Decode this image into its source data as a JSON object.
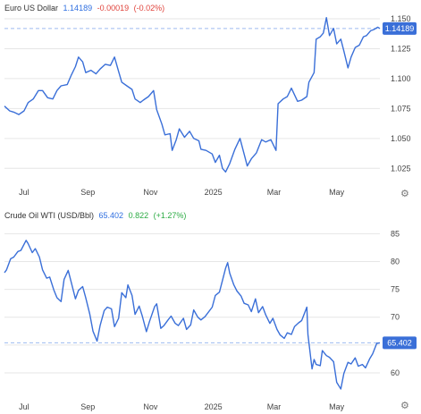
{
  "colors": {
    "line": "#3a6fd8",
    "label_bg": "#3a6fd8",
    "negative": "#e0443c",
    "positive": "#2bab43",
    "grid": "#e6e6e6"
  },
  "icons": {
    "settings": "gear-icon"
  },
  "chart_data": [
    {
      "type": "line",
      "title": "Euro US Dollar",
      "price": "1.14189",
      "change": "-0.00019",
      "change_pct": "(-0.02%)",
      "current_label": "1.14189",
      "current_value": 1.14189,
      "x_ticks": [
        "Jul",
        "Sep",
        "Nov",
        "2025",
        "Mar",
        "May"
      ],
      "y_ticks": [
        "1.150",
        "1.125",
        "1.100",
        "1.075",
        "1.050",
        "1.025"
      ],
      "y_tick_values": [
        1.15,
        1.125,
        1.1,
        1.075,
        1.05,
        1.025
      ],
      "ylim": [
        1.0125,
        1.1545
      ],
      "x_range": [
        "2024-06-12",
        "2025-06-12"
      ],
      "series": [
        {
          "points": [
            [
              "2024-06-12",
              1.077
            ],
            [
              "2024-06-17",
              1.073
            ],
            [
              "2024-06-21",
              1.072
            ],
            [
              "2024-06-26",
              1.07
            ],
            [
              "2024-07-01",
              1.073
            ],
            [
              "2024-07-05",
              1.08
            ],
            [
              "2024-07-10",
              1.083
            ],
            [
              "2024-07-15",
              1.09
            ],
            [
              "2024-07-19",
              1.09
            ],
            [
              "2024-07-24",
              1.084
            ],
            [
              "2024-07-29",
              1.083
            ],
            [
              "2024-08-02",
              1.09
            ],
            [
              "2024-08-06",
              1.094
            ],
            [
              "2024-08-12",
              1.095
            ],
            [
              "2024-08-16",
              1.103
            ],
            [
              "2024-08-20",
              1.11
            ],
            [
              "2024-08-23",
              1.118
            ],
            [
              "2024-08-27",
              1.114
            ],
            [
              "2024-08-30",
              1.105
            ],
            [
              "2024-09-04",
              1.107
            ],
            [
              "2024-09-09",
              1.104
            ],
            [
              "2024-09-13",
              1.108
            ],
            [
              "2024-09-18",
              1.112
            ],
            [
              "2024-09-23",
              1.111
            ],
            [
              "2024-09-27",
              1.118
            ],
            [
              "2024-10-01",
              1.106
            ],
            [
              "2024-10-04",
              1.097
            ],
            [
              "2024-10-09",
              1.094
            ],
            [
              "2024-10-14",
              1.091
            ],
            [
              "2024-10-17",
              1.083
            ],
            [
              "2024-10-22",
              1.08
            ],
            [
              "2024-10-25",
              1.082
            ],
            [
              "2024-10-30",
              1.085
            ],
            [
              "2024-11-04",
              1.09
            ],
            [
              "2024-11-07",
              1.074
            ],
            [
              "2024-11-12",
              1.062
            ],
            [
              "2024-11-15",
              1.053
            ],
            [
              "2024-11-20",
              1.054
            ],
            [
              "2024-11-22",
              1.04
            ],
            [
              "2024-11-26",
              1.049
            ],
            [
              "2024-11-29",
              1.058
            ],
            [
              "2024-12-04",
              1.051
            ],
            [
              "2024-12-09",
              1.056
            ],
            [
              "2024-12-13",
              1.05
            ],
            [
              "2024-12-18",
              1.048
            ],
            [
              "2024-12-20",
              1.041
            ],
            [
              "2024-12-25",
              1.04
            ],
            [
              "2024-12-31",
              1.037
            ],
            [
              "2025-01-03",
              1.03
            ],
            [
              "2025-01-07",
              1.036
            ],
            [
              "2025-01-10",
              1.025
            ],
            [
              "2025-01-13",
              1.022
            ],
            [
              "2025-01-17",
              1.029
            ],
            [
              "2025-01-22",
              1.041
            ],
            [
              "2025-01-27",
              1.05
            ],
            [
              "2025-01-31",
              1.037
            ],
            [
              "2025-02-03",
              1.027
            ],
            [
              "2025-02-07",
              1.033
            ],
            [
              "2025-02-12",
              1.038
            ],
            [
              "2025-02-17",
              1.049
            ],
            [
              "2025-02-21",
              1.047
            ],
            [
              "2025-02-26",
              1.049
            ],
            [
              "2025-03-03",
              1.04
            ],
            [
              "2025-03-05",
              1.079
            ],
            [
              "2025-03-10",
              1.083
            ],
            [
              "2025-03-14",
              1.085
            ],
            [
              "2025-03-18",
              1.092
            ],
            [
              "2025-03-24",
              1.081
            ],
            [
              "2025-03-28",
              1.082
            ],
            [
              "2025-04-02",
              1.085
            ],
            [
              "2025-04-04",
              1.097
            ],
            [
              "2025-04-09",
              1.105
            ],
            [
              "2025-04-11",
              1.133
            ],
            [
              "2025-04-15",
              1.135
            ],
            [
              "2025-04-18",
              1.138
            ],
            [
              "2025-04-21",
              1.151
            ],
            [
              "2025-04-24",
              1.136
            ],
            [
              "2025-04-28",
              1.142
            ],
            [
              "2025-05-01",
              1.129
            ],
            [
              "2025-05-05",
              1.133
            ],
            [
              "2025-05-08",
              1.123
            ],
            [
              "2025-05-12",
              1.109
            ],
            [
              "2025-05-15",
              1.118
            ],
            [
              "2025-05-19",
              1.126
            ],
            [
              "2025-05-23",
              1.128
            ],
            [
              "2025-05-27",
              1.135
            ],
            [
              "2025-05-30",
              1.136
            ],
            [
              "2025-06-03",
              1.14
            ],
            [
              "2025-06-06",
              1.141
            ],
            [
              "2025-06-10",
              1.143
            ],
            [
              "2025-06-12",
              1.1419
            ]
          ]
        }
      ]
    },
    {
      "type": "line",
      "title": "Crude Oil WTI (USD/Bbl)",
      "price": "65.402",
      "change": "0.822",
      "change_pct": "(+1.27%)",
      "current_label": "65.402",
      "current_value": 65.402,
      "x_ticks": [
        "Jul",
        "Sep",
        "Nov",
        "2025",
        "Mar",
        "May"
      ],
      "y_ticks": [
        "85",
        "80",
        "75",
        "70",
        "65",
        "60"
      ],
      "y_tick_values": [
        85,
        80,
        75,
        70,
        65,
        60
      ],
      "ylim": [
        55.5,
        86.5
      ],
      "x_range": [
        "2024-06-12",
        "2025-06-12"
      ],
      "series": [
        {
          "points": [
            [
              "2024-06-12",
              78.0
            ],
            [
              "2024-06-14",
              78.5
            ],
            [
              "2024-06-18",
              80.5
            ],
            [
              "2024-06-21",
              80.8
            ],
            [
              "2024-06-25",
              81.8
            ],
            [
              "2024-06-28",
              82.0
            ],
            [
              "2024-07-03",
              83.8
            ],
            [
              "2024-07-05",
              83.2
            ],
            [
              "2024-07-09",
              81.6
            ],
            [
              "2024-07-12",
              82.3
            ],
            [
              "2024-07-16",
              80.8
            ],
            [
              "2024-07-19",
              78.5
            ],
            [
              "2024-07-23",
              77.0
            ],
            [
              "2024-07-26",
              77.2
            ],
            [
              "2024-07-30",
              74.9
            ],
            [
              "2024-08-02",
              73.5
            ],
            [
              "2024-08-06",
              72.8
            ],
            [
              "2024-08-09",
              76.8
            ],
            [
              "2024-08-13",
              78.4
            ],
            [
              "2024-08-16",
              76.2
            ],
            [
              "2024-08-20",
              73.3
            ],
            [
              "2024-08-23",
              74.8
            ],
            [
              "2024-08-27",
              75.5
            ],
            [
              "2024-08-30",
              73.5
            ],
            [
              "2024-09-03",
              70.5
            ],
            [
              "2024-09-06",
              67.5
            ],
            [
              "2024-09-10",
              65.7
            ],
            [
              "2024-09-13",
              68.5
            ],
            [
              "2024-09-17",
              71.2
            ],
            [
              "2024-09-20",
              71.8
            ],
            [
              "2024-09-24",
              71.5
            ],
            [
              "2024-09-27",
              68.3
            ],
            [
              "2024-10-01",
              69.8
            ],
            [
              "2024-10-04",
              74.4
            ],
            [
              "2024-10-08",
              73.5
            ],
            [
              "2024-10-10",
              75.8
            ],
            [
              "2024-10-14",
              73.9
            ],
            [
              "2024-10-17",
              70.5
            ],
            [
              "2024-10-21",
              72.0
            ],
            [
              "2024-10-24",
              70.2
            ],
            [
              "2024-10-28",
              67.4
            ],
            [
              "2024-10-31",
              69.2
            ],
            [
              "2024-11-05",
              71.9
            ],
            [
              "2024-11-07",
              72.4
            ],
            [
              "2024-11-11",
              68.0
            ],
            [
              "2024-11-14",
              68.5
            ],
            [
              "2024-11-18",
              69.5
            ],
            [
              "2024-11-21",
              70.2
            ],
            [
              "2024-11-25",
              68.9
            ],
            [
              "2024-11-28",
              68.5
            ],
            [
              "2024-12-03",
              69.8
            ],
            [
              "2024-12-06",
              67.8
            ],
            [
              "2024-12-10",
              68.6
            ],
            [
              "2024-12-13",
              71.3
            ],
            [
              "2024-12-17",
              70.0
            ],
            [
              "2024-12-20",
              69.5
            ],
            [
              "2024-12-24",
              70.1
            ],
            [
              "2024-12-31",
              71.8
            ],
            [
              "2025-01-03",
              73.9
            ],
            [
              "2025-01-07",
              74.5
            ],
            [
              "2025-01-10",
              76.6
            ],
            [
              "2025-01-13",
              78.8
            ],
            [
              "2025-01-15",
              79.8
            ],
            [
              "2025-01-17",
              77.9
            ],
            [
              "2025-01-21",
              75.8
            ],
            [
              "2025-01-24",
              74.7
            ],
            [
              "2025-01-28",
              73.8
            ],
            [
              "2025-01-31",
              72.5
            ],
            [
              "2025-02-04",
              72.2
            ],
            [
              "2025-02-07",
              71.0
            ],
            [
              "2025-02-11",
              73.3
            ],
            [
              "2025-02-14",
              70.8
            ],
            [
              "2025-02-18",
              71.9
            ],
            [
              "2025-02-21",
              70.4
            ],
            [
              "2025-02-25",
              68.9
            ],
            [
              "2025-02-28",
              69.8
            ],
            [
              "2025-03-04",
              67.8
            ],
            [
              "2025-03-07",
              66.8
            ],
            [
              "2025-03-11",
              66.2
            ],
            [
              "2025-03-14",
              67.2
            ],
            [
              "2025-03-18",
              66.9
            ],
            [
              "2025-03-21",
              68.3
            ],
            [
              "2025-03-25",
              69.0
            ],
            [
              "2025-03-28",
              69.4
            ],
            [
              "2025-04-02",
              71.8
            ],
            [
              "2025-04-03",
              66.9
            ],
            [
              "2025-04-07",
              60.7
            ],
            [
              "2025-04-09",
              62.4
            ],
            [
              "2025-04-11",
              61.5
            ],
            [
              "2025-04-15",
              61.3
            ],
            [
              "2025-04-17",
              64.0
            ],
            [
              "2025-04-21",
              63.1
            ],
            [
              "2025-04-24",
              62.8
            ],
            [
              "2025-04-28",
              62.0
            ],
            [
              "2025-05-01",
              58.3
            ],
            [
              "2025-05-05",
              57.1
            ],
            [
              "2025-05-08",
              59.9
            ],
            [
              "2025-05-12",
              61.9
            ],
            [
              "2025-05-15",
              61.6
            ],
            [
              "2025-05-19",
              62.7
            ],
            [
              "2025-05-22",
              61.2
            ],
            [
              "2025-05-26",
              61.5
            ],
            [
              "2025-05-29",
              60.9
            ],
            [
              "2025-06-02",
              62.5
            ],
            [
              "2025-06-05",
              63.4
            ],
            [
              "2025-06-09",
              65.3
            ],
            [
              "2025-06-12",
              65.402
            ]
          ]
        }
      ]
    }
  ]
}
